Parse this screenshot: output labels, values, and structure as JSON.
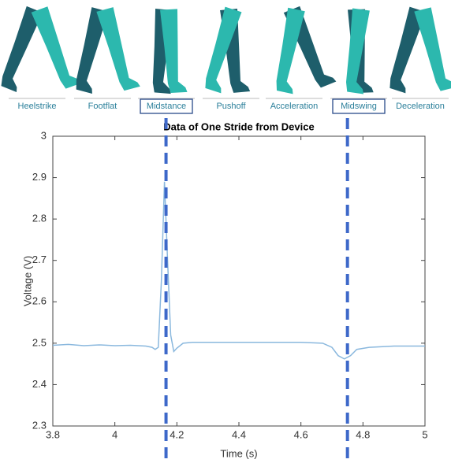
{
  "phases": {
    "labels": [
      "Heelstrike",
      "Footflat",
      "Midstance",
      "Pushoff",
      "Acceleration",
      "Midswing",
      "Deceleration"
    ],
    "boxed": [
      false,
      false,
      true,
      false,
      false,
      true,
      false
    ]
  },
  "chart_data": {
    "type": "line",
    "title": "Data of One Stride from Device",
    "xlabel": "Time (s)",
    "ylabel": "Voltage (V)",
    "x": [
      3.8,
      3.85,
      3.9,
      3.95,
      4.0,
      4.05,
      4.1,
      4.12,
      4.13,
      4.14,
      4.15,
      4.16,
      4.17,
      4.18,
      4.19,
      4.2,
      4.22,
      4.25,
      4.4,
      4.6,
      4.67,
      4.7,
      4.72,
      4.74,
      4.76,
      4.78,
      4.82,
      4.9,
      5.0
    ],
    "series": [
      {
        "color": "#8ab8de",
        "values": [
          2.495,
          2.497,
          2.494,
          2.496,
          2.494,
          2.495,
          2.493,
          2.49,
          2.485,
          2.49,
          2.65,
          2.89,
          2.7,
          2.52,
          2.48,
          2.488,
          2.5,
          2.502,
          2.502,
          2.502,
          2.5,
          2.49,
          2.47,
          2.462,
          2.47,
          2.485,
          2.49,
          2.493,
          2.493
        ]
      }
    ],
    "vlines": {
      "values": [
        4.165,
        4.75
      ],
      "color": "#3d68c9"
    },
    "xlim": [
      3.8,
      5
    ],
    "ylim": [
      2.3,
      3
    ],
    "xticks": [
      3.8,
      4,
      4.2,
      4.4,
      4.6,
      4.8,
      5
    ],
    "yticks": [
      2.3,
      2.4,
      2.5,
      2.6,
      2.7,
      2.8,
      2.9,
      3
    ]
  }
}
